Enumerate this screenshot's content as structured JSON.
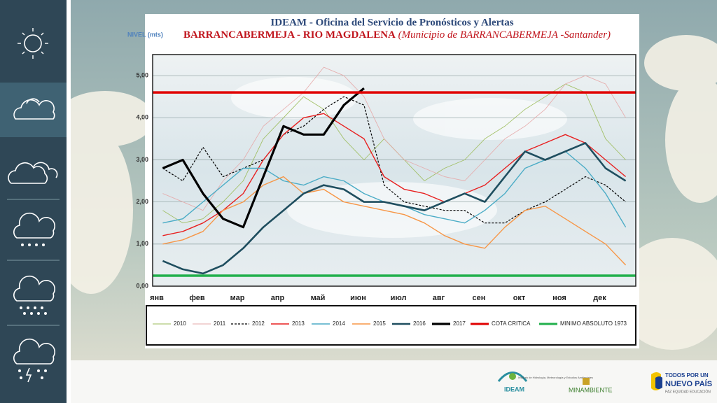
{
  "chart_data": {
    "type": "line",
    "title": "IDEAM - Oficina del Servicio de Pronósticos y Alertas",
    "subtitle": "BARRANCABERMEJA - RIO MAGDALENA",
    "subtitle_detail": "(Municipio de BARRANCABERMEJA -Santander)",
    "y_label": "NIVEL (mts)",
    "categories": [
      "янв",
      null,
      "фев",
      null,
      "мар",
      null,
      "апр",
      null,
      "май",
      null,
      "июн",
      null,
      "июл",
      null,
      "авг",
      null,
      "сен",
      null,
      "окт",
      null,
      "ноя",
      null,
      "дек",
      null
    ],
    "ylim": [
      0,
      5.5
    ],
    "yticks": [
      {
        "value": 0,
        "label": "0,00"
      },
      {
        "value": 1,
        "label": "1,00"
      },
      {
        "value": 2,
        "label": "2,00"
      },
      {
        "value": 3,
        "label": "3,00"
      },
      {
        "value": 4,
        "label": "4,00"
      },
      {
        "value": 5,
        "label": "5,00"
      }
    ],
    "grid": true,
    "series": [
      {
        "name": "2010",
        "color": "#9bbb59",
        "style": "thin",
        "values": [
          1.8,
          1.5,
          1.6,
          2.0,
          2.5,
          3.5,
          4.0,
          4.5,
          4.2,
          3.5,
          3.0,
          3.5,
          3.0,
          2.5,
          2.8,
          3.0,
          3.5,
          3.8,
          4.2,
          4.5,
          4.8,
          4.6,
          3.5,
          3.0
        ]
      },
      {
        "name": "2011",
        "color": "#e6a9a8",
        "style": "thin",
        "values": [
          2.2,
          2.0,
          1.8,
          2.5,
          3.0,
          3.8,
          4.2,
          4.6,
          5.2,
          5.0,
          4.5,
          3.5,
          3.0,
          2.8,
          2.6,
          2.5,
          3.0,
          3.5,
          3.8,
          4.2,
          4.8,
          5.0,
          4.8,
          4.0
        ]
      },
      {
        "name": "2012",
        "color": "#000000",
        "style": "dashed",
        "values": [
          2.8,
          2.5,
          3.3,
          2.6,
          2.8,
          3.0,
          3.6,
          3.8,
          4.2,
          4.5,
          4.3,
          2.4,
          2.0,
          1.9,
          1.8,
          1.8,
          1.5,
          1.5,
          1.8,
          2.0,
          2.3,
          2.6,
          2.4,
          2.0
        ]
      },
      {
        "name": "2013",
        "color": "#e82020",
        "style": "normal",
        "values": [
          1.2,
          1.3,
          1.5,
          1.8,
          2.2,
          3.0,
          3.6,
          4.0,
          4.1,
          3.8,
          3.5,
          2.6,
          2.3,
          2.2,
          2.0,
          2.2,
          2.4,
          2.8,
          3.2,
          3.4,
          3.6,
          3.4,
          3.0,
          2.6
        ]
      },
      {
        "name": "2014",
        "color": "#4bacc6",
        "style": "normal",
        "values": [
          1.5,
          1.6,
          2.0,
          2.4,
          2.8,
          2.8,
          2.5,
          2.4,
          2.6,
          2.5,
          2.2,
          2.0,
          1.9,
          1.7,
          1.6,
          1.5,
          1.8,
          2.2,
          2.8,
          3.0,
          3.2,
          2.8,
          2.2,
          1.4
        ]
      },
      {
        "name": "2015",
        "color": "#f79646",
        "style": "normal",
        "values": [
          1.0,
          1.1,
          1.3,
          1.8,
          2.0,
          2.4,
          2.6,
          2.2,
          2.3,
          2.0,
          1.9,
          1.8,
          1.7,
          1.5,
          1.2,
          1.0,
          0.9,
          1.4,
          1.8,
          1.9,
          1.6,
          1.3,
          1.0,
          0.5
        ]
      },
      {
        "name": "2016",
        "color": "#1f4e5f",
        "style": "thick",
        "values": [
          0.6,
          0.4,
          0.3,
          0.5,
          0.9,
          1.4,
          1.8,
          2.2,
          2.4,
          2.3,
          2.0,
          2.0,
          1.9,
          1.8,
          2.0,
          2.2,
          2.0,
          2.6,
          3.2,
          3.0,
          3.2,
          3.4,
          2.8,
          2.5
        ]
      },
      {
        "name": "2017",
        "color": "#000000",
        "style": "heavy",
        "values": [
          2.8,
          3.0,
          2.2,
          1.6,
          1.4,
          2.6,
          3.8,
          3.6,
          3.6,
          4.3,
          4.7,
          null,
          null,
          null,
          null,
          null,
          null,
          null,
          null,
          null,
          null,
          null,
          null,
          null
        ]
      }
    ],
    "reference_lines": [
      {
        "name": "COTA CRITICA",
        "color": "#e00000",
        "value": 4.6
      },
      {
        "name": "MINIMO ABSOLUTO 1973",
        "color": "#22b04c",
        "value": 0.25
      }
    ]
  },
  "footer": {
    "ideam": "IDEAM",
    "ideam_detail": "Instituto de Hidrología, Meteorología y Estudios Ambientales",
    "ministry": "MINAMBIENTE",
    "gov_line1": "TODOS POR UN",
    "gov_line2": "NUEVO PAÍS",
    "gov_motto": "PAZ EQUIDAD EDUCACIÓN"
  }
}
